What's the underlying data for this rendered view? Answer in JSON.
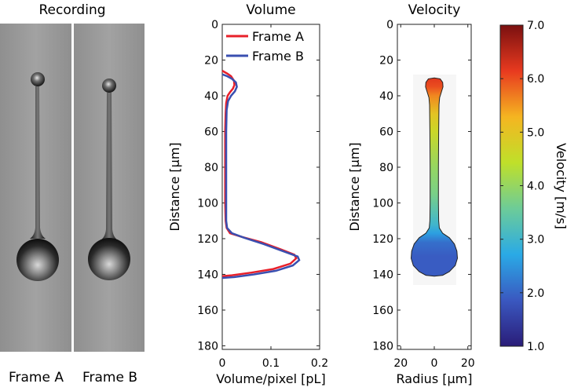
{
  "panels": {
    "recording": {
      "title": "Recording",
      "frames": [
        "Frame A",
        "Frame B"
      ]
    },
    "volume": {
      "title": "Volume"
    },
    "velocity": {
      "title": "Velocity"
    }
  },
  "chart_data": [
    {
      "type": "line",
      "title": "Volume",
      "xlabel": "Volume/pixel [pL]",
      "ylabel": "Distance [μm]",
      "xlim": [
        0,
        0.2
      ],
      "ylim": [
        0,
        182
      ],
      "y_inverted": true,
      "xticks": [
        "0",
        "0.1",
        "0.2"
      ],
      "yticks": [
        "0",
        "20",
        "40",
        "60",
        "80",
        "100",
        "120",
        "140",
        "160",
        "180"
      ],
      "legend_placement": "top-right",
      "colors": {
        "Frame A": "#e8202a",
        "Frame B": "#3a4fb0"
      },
      "series": [
        {
          "name": "Frame A",
          "points": [
            [
              0,
              26
            ],
            [
              0.01,
              27.5
            ],
            [
              0.018,
              29
            ],
            [
              0.024,
              31.5
            ],
            [
              0.025,
              34
            ],
            [
              0.022,
              36
            ],
            [
              0.016,
              38
            ],
            [
              0.011,
              40
            ],
            [
              0.008,
              44
            ],
            [
              0.007,
              50
            ],
            [
              0.006,
              60
            ],
            [
              0.006,
              80
            ],
            [
              0.006,
              100
            ],
            [
              0.007,
              110
            ],
            [
              0.009,
              114
            ],
            [
              0.016,
              117
            ],
            [
              0.04,
              119
            ],
            [
              0.08,
              122
            ],
            [
              0.12,
              126
            ],
            [
              0.148,
              129
            ],
            [
              0.152,
              131
            ],
            [
              0.14,
              134
            ],
            [
              0.105,
              137
            ],
            [
              0.06,
              139
            ],
            [
              0.02,
              140.5
            ],
            [
              0,
              141
            ]
          ]
        },
        {
          "name": "Frame B",
          "points": [
            [
              0,
              28
            ],
            [
              0.01,
              29
            ],
            [
              0.02,
              30.5
            ],
            [
              0.028,
              32.5
            ],
            [
              0.03,
              35
            ],
            [
              0.026,
              37.5
            ],
            [
              0.018,
              40
            ],
            [
              0.012,
              43
            ],
            [
              0.009,
              48
            ],
            [
              0.008,
              60
            ],
            [
              0.008,
              80
            ],
            [
              0.008,
              100
            ],
            [
              0.008,
              110
            ],
            [
              0.01,
              114
            ],
            [
              0.02,
              117
            ],
            [
              0.045,
              119.5
            ],
            [
              0.085,
              123
            ],
            [
              0.125,
              127
            ],
            [
              0.155,
              130
            ],
            [
              0.158,
              132
            ],
            [
              0.145,
              135
            ],
            [
              0.11,
              138
            ],
            [
              0.065,
              140
            ],
            [
              0.025,
              141.5
            ],
            [
              0,
              142
            ]
          ]
        }
      ]
    },
    {
      "type": "heatmap",
      "title": "Velocity",
      "xlabel": "Radius [μm]",
      "ylabel": "Distance [μm]",
      "xlim": [
        -22,
        22
      ],
      "ylim": [
        0,
        182
      ],
      "y_inverted": true,
      "xticks": [
        "20",
        "0",
        "20"
      ],
      "yticks": [
        "0",
        "20",
        "40",
        "60",
        "80",
        "100",
        "120",
        "140",
        "160",
        "180"
      ],
      "profile": [
        [
          0,
          30
        ],
        [
          3.5,
          30.5
        ],
        [
          5,
          32.5
        ],
        [
          5.2,
          35
        ],
        [
          4.2,
          38
        ],
        [
          3.2,
          41
        ],
        [
          2.8,
          45
        ],
        [
          2.6,
          60
        ],
        [
          2.5,
          80
        ],
        [
          2.5,
          100
        ],
        [
          2.6,
          110
        ],
        [
          3,
          114
        ],
        [
          5,
          117
        ],
        [
          9,
          119.5
        ],
        [
          12,
          123
        ],
        [
          13.5,
          127
        ],
        [
          13.8,
          131
        ],
        [
          12.5,
          135
        ],
        [
          9,
          138.5
        ],
        [
          5,
          140.5
        ],
        [
          0,
          141
        ]
      ],
      "velocity_by_distance": [
        [
          30,
          6.2
        ],
        [
          35,
          6.0
        ],
        [
          40,
          5.6
        ],
        [
          50,
          5.0
        ],
        [
          60,
          4.6
        ],
        [
          80,
          4.0
        ],
        [
          95,
          3.7
        ],
        [
          105,
          3.3
        ],
        [
          112,
          3.0
        ],
        [
          117,
          2.6
        ],
        [
          122,
          2.1
        ],
        [
          130,
          1.9
        ],
        [
          141,
          1.9
        ]
      ]
    },
    {
      "type": "colorbar",
      "label": "Velocity [m/s]",
      "range": [
        1.0,
        7.0
      ],
      "ticks": [
        "1.0",
        "2.0",
        "3.0",
        "4.0",
        "5.0",
        "6.0",
        "7.0"
      ],
      "colormap": [
        "#2a1c78",
        "#3a58c0",
        "#2aaae6",
        "#6dcc98",
        "#bfe02a",
        "#f5b521",
        "#e83a1f",
        "#7a1010"
      ]
    }
  ]
}
